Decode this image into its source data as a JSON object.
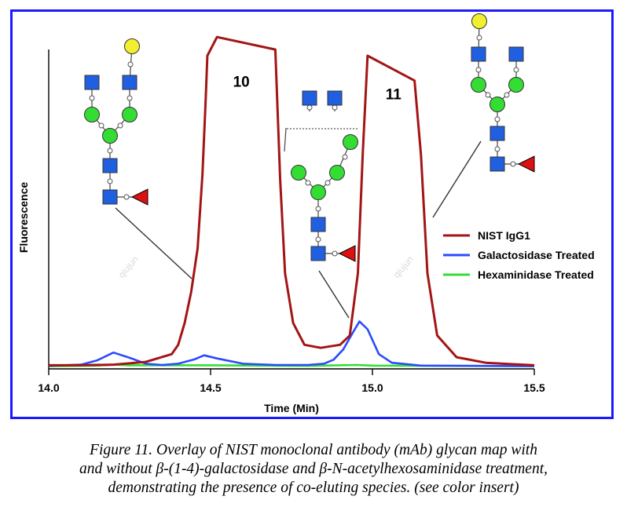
{
  "chart_data": {
    "type": "line",
    "xlabel": "Time (Min)",
    "ylabel": "Fluorescence",
    "xlim": [
      14.0,
      15.5
    ],
    "ylim": [
      0,
      100
    ],
    "x_ticks": [
      "14.0",
      "14.5",
      "15.0",
      "15.5"
    ],
    "legend_position": "right",
    "series": [
      {
        "name": "NIST IgG1",
        "color": "#a31515",
        "points": [
          [
            14.0,
            0.4
          ],
          [
            14.1,
            0.4
          ],
          [
            14.2,
            0.6
          ],
          [
            14.3,
            1.5
          ],
          [
            14.38,
            4
          ],
          [
            14.4,
            7
          ],
          [
            14.42,
            14
          ],
          [
            14.44,
            24
          ],
          [
            14.46,
            38
          ],
          [
            14.475,
            62
          ],
          [
            14.485,
            86
          ],
          [
            14.49,
            100
          ],
          [
            14.52,
            106
          ],
          [
            14.7,
            102
          ],
          [
            14.715,
            60
          ],
          [
            14.73,
            30
          ],
          [
            14.755,
            14
          ],
          [
            14.79,
            7
          ],
          [
            14.84,
            6
          ],
          [
            14.9,
            7
          ],
          [
            14.93,
            10
          ],
          [
            14.955,
            30
          ],
          [
            14.97,
            68
          ],
          [
            14.985,
            100
          ],
          [
            15.13,
            92
          ],
          [
            15.15,
            68
          ],
          [
            15.17,
            30
          ],
          [
            15.2,
            10
          ],
          [
            15.26,
            3
          ],
          [
            15.35,
            1.2
          ],
          [
            15.5,
            0.4
          ]
        ]
      },
      {
        "name": "Galactosidase Treated",
        "color": "#2a4bff",
        "points": [
          [
            14.0,
            0.2
          ],
          [
            14.1,
            0.6
          ],
          [
            14.15,
            2
          ],
          [
            14.2,
            4.5
          ],
          [
            14.25,
            2.8
          ],
          [
            14.3,
            0.9
          ],
          [
            14.35,
            0.5
          ],
          [
            14.4,
            0.9
          ],
          [
            14.45,
            2.3
          ],
          [
            14.48,
            3.6
          ],
          [
            14.52,
            2.6
          ],
          [
            14.6,
            0.9
          ],
          [
            14.7,
            0.5
          ],
          [
            14.8,
            0.5
          ],
          [
            14.85,
            0.9
          ],
          [
            14.88,
            2.2
          ],
          [
            14.91,
            5.5
          ],
          [
            14.94,
            11
          ],
          [
            14.96,
            14.5
          ],
          [
            14.985,
            12
          ],
          [
            15.02,
            4
          ],
          [
            15.06,
            1.2
          ],
          [
            15.15,
            0.3
          ],
          [
            15.5,
            0.1
          ]
        ]
      },
      {
        "name": "Hexaminidase Treated",
        "color": "#33dd33",
        "points": [
          [
            14.0,
            0.1
          ],
          [
            14.15,
            0.3
          ],
          [
            14.2,
            0.6
          ],
          [
            14.25,
            0.4
          ],
          [
            14.5,
            0.4
          ],
          [
            14.8,
            0.2
          ],
          [
            14.95,
            0.5
          ],
          [
            15.0,
            0.3
          ],
          [
            15.5,
            0.1
          ]
        ]
      }
    ],
    "annotations": [
      {
        "text": "10",
        "x": 14.595,
        "y": 90
      },
      {
        "text": "11",
        "x": 15.065,
        "y": 86
      }
    ]
  },
  "caption": {
    "lines": [
      "Figure 11.  Overlay of NIST monoclonal antibody (mAb) glycan map with",
      "and without β-(1-4)-galactosidase and β-N-acetylhexosaminidase treatment,",
      "demonstrating the presence of co-eluting species. (see color insert)"
    ]
  },
  "watermarks": [
    "qiujun",
    "qiujun"
  ],
  "glycan_colors": {
    "mannose": "#33dd33",
    "glcnac": "#2060e0",
    "galactose": "#f2ee30",
    "fucose": "#dd1111"
  }
}
